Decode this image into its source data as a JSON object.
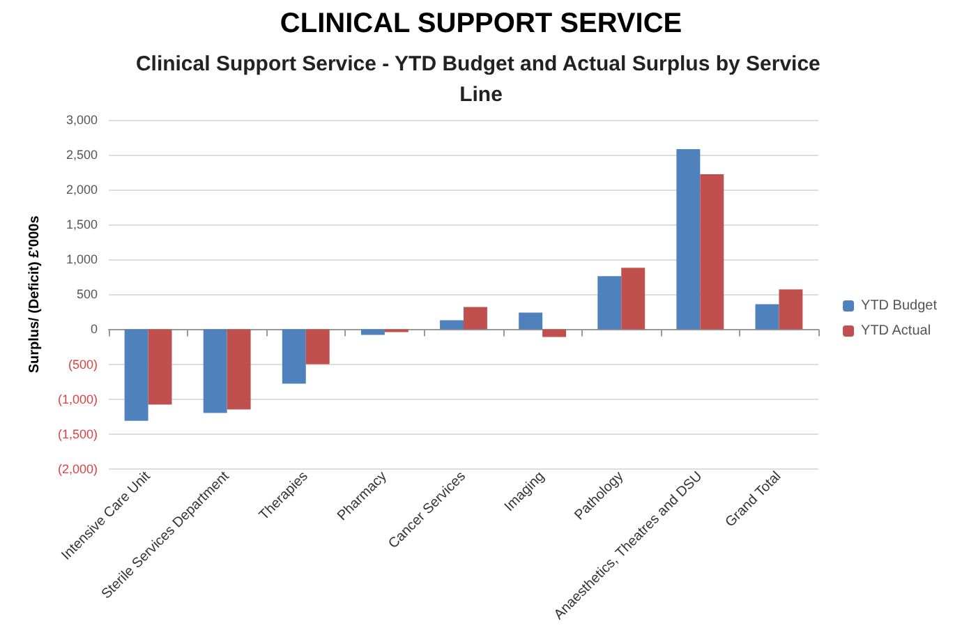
{
  "chart_data": {
    "type": "bar",
    "title": "Clinical Support Service - YTD Budget and Actual Surplus by Service Line",
    "ylabel": "Surplus/ (Deficit) £'000s",
    "annotations": [
      "CLINICAL SUPPORT SERVICE"
    ],
    "categories": [
      "Intensive Care Unit",
      "Sterile Services Department",
      "Therapies",
      "Pharmacy",
      "Cancer Services",
      "Imaging",
      "Pathology",
      "Anaesthetics, Theatres and DSU",
      "Grand Total"
    ],
    "series": [
      {
        "name": "YTD Budget",
        "color": "#4f81bd",
        "values": [
          -1310,
          -1200,
          -780,
          -80,
          130,
          240,
          760,
          2580,
          360
        ]
      },
      {
        "name": "YTD Actual",
        "color": "#c0504d",
        "values": [
          -1080,
          -1150,
          -500,
          -40,
          320,
          -110,
          880,
          2220,
          570
        ]
      }
    ],
    "ylim": [
      -2000,
      3000
    ],
    "yticks": [
      {
        "value": -2000,
        "label": "(2,000)"
      },
      {
        "value": -1500,
        "label": "(1,500)"
      },
      {
        "value": -1000,
        "label": "(1,000)"
      },
      {
        "value": -500,
        "label": "(500)"
      },
      0,
      500,
      "1,000",
      "1,500",
      "2,000",
      "2,500",
      "3,000"
    ],
    "grid": "y",
    "legend": "right"
  }
}
